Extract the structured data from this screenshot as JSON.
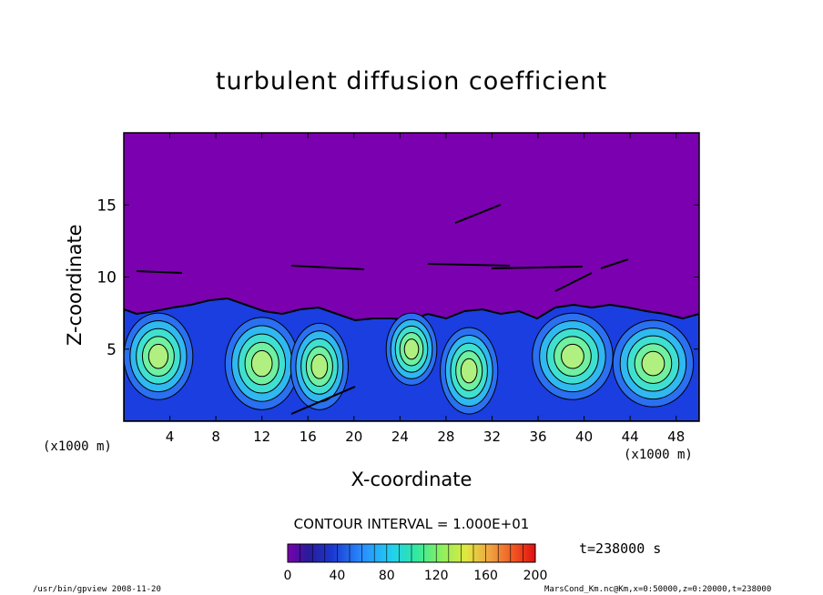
{
  "chart_data": {
    "type": "heatmap",
    "title": "turbulent diffusion coefficient",
    "xlabel": "X-coordinate",
    "ylabel": "Z-coordinate",
    "x_unit_left": "(x1000 m)",
    "x_unit_right": "(x1000 m)",
    "xlim": [
      0,
      50
    ],
    "ylim": [
      0,
      20
    ],
    "x_ticks": [
      "4",
      "8",
      "12",
      "16",
      "20",
      "24",
      "28",
      "32",
      "36",
      "40",
      "44",
      "48"
    ],
    "x_tick_values": [
      4,
      8,
      12,
      16,
      20,
      24,
      28,
      32,
      36,
      40,
      44,
      48
    ],
    "y_ticks": [
      "5",
      "10",
      "15"
    ],
    "y_tick_values": [
      5,
      10,
      15
    ],
    "contour_interval_label": "CONTOUR INTERVAL = 1.000E+01",
    "colorbar_ticks": [
      "0",
      "40",
      "80",
      "120",
      "160",
      "200"
    ],
    "colorbar_tick_values": [
      0,
      40,
      80,
      120,
      160,
      200
    ],
    "colorbar_range": [
      0,
      200
    ],
    "time_label": "t=238000 s",
    "background_value_color": "#7b00b0",
    "boundary_layer_top_km": 7,
    "turbulent_cells": [
      {
        "x": 3,
        "z": 4.5,
        "rx": 3,
        "rz": 3
      },
      {
        "x": 12,
        "z": 4,
        "rx": 3.2,
        "rz": 3.2
      },
      {
        "x": 17,
        "z": 3.8,
        "rx": 2.5,
        "rz": 3
      },
      {
        "x": 25,
        "z": 5,
        "rx": 2.2,
        "rz": 2.5
      },
      {
        "x": 30,
        "z": 3.5,
        "rx": 2.5,
        "rz": 3
      },
      {
        "x": 39,
        "z": 4.5,
        "rx": 3.5,
        "rz": 3
      },
      {
        "x": 46,
        "z": 4,
        "rx": 3.5,
        "rz": 3
      }
    ],
    "footer_left": "/usr/bin/gpview   2008-11-20",
    "footer_right": "MarsCond_Km.nc@Km,x=0:50000,z=0:20000,t=238000"
  }
}
